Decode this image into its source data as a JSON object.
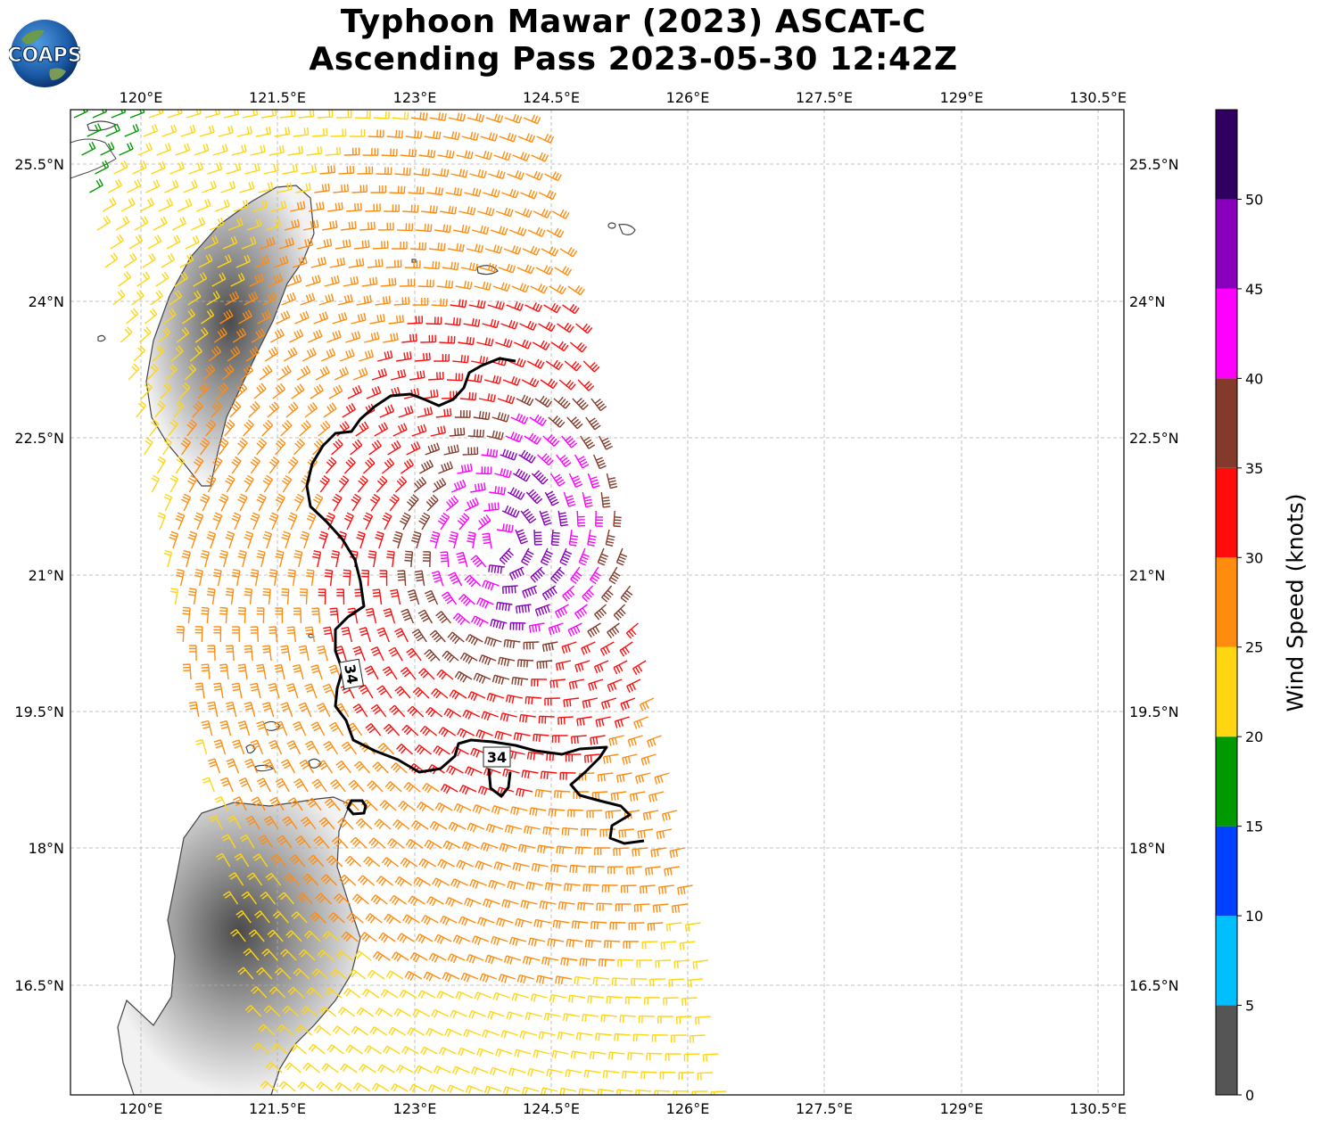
{
  "title_line1": "Typhoon Mawar (2023) ASCAT-C",
  "title_line2": "Ascending Pass 2023-05-30 12:42Z",
  "logo_text": "COAPS",
  "lon_labels": [
    "120°E",
    "121.5°E",
    "123°E",
    "124.5°E",
    "126°E",
    "127.5°E",
    "129°E",
    "130.5°E"
  ],
  "lat_labels": [
    "25.5°N",
    "24°N",
    "22.5°N",
    "21°N",
    "19.5°N",
    "18°N",
    "16.5°N"
  ],
  "contour_labels": [
    "34",
    "34"
  ],
  "colorbar": {
    "label": "Wind Speed (knots)",
    "ticks": [
      "0",
      "5",
      "10",
      "15",
      "20",
      "25",
      "30",
      "35",
      "40",
      "45",
      "50"
    ],
    "bins": [
      {
        "from": 0,
        "to": 5,
        "color": "#555555"
      },
      {
        "from": 5,
        "to": 10,
        "color": "#00bfff"
      },
      {
        "from": 10,
        "to": 15,
        "color": "#0040ff"
      },
      {
        "from": 15,
        "to": 20,
        "color": "#009900"
      },
      {
        "from": 20,
        "to": 25,
        "color": "#ffd611"
      },
      {
        "from": 25,
        "to": 30,
        "color": "#ff8c0f"
      },
      {
        "from": 30,
        "to": 35,
        "color": "#ff0d0d"
      },
      {
        "from": 35,
        "to": 40,
        "color": "#833a2a"
      },
      {
        "from": 40,
        "to": 45,
        "color": "#ff00ff"
      },
      {
        "from": 45,
        "to": 50,
        "color": "#8800bb"
      },
      {
        "from": 50,
        "to": 55,
        "color": "#300060"
      }
    ]
  }
}
